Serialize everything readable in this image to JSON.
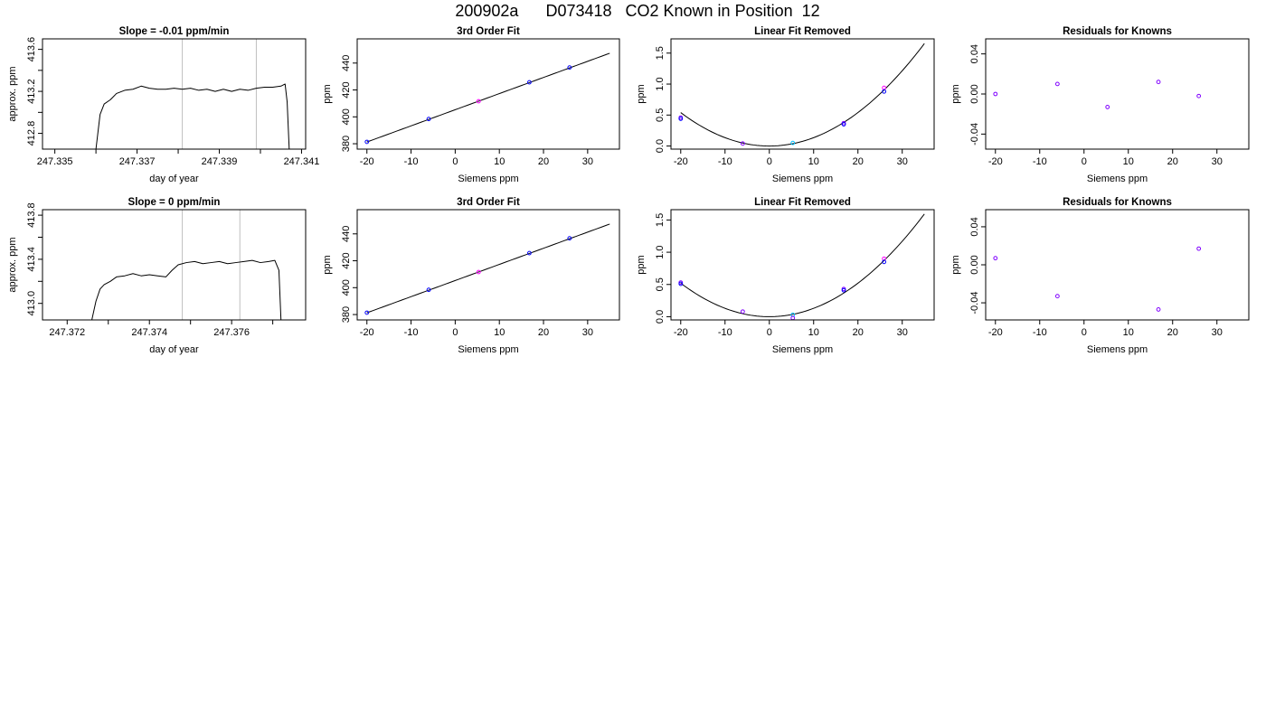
{
  "page": {
    "title": "200902a      D073418   CO2 Known in Position  12"
  },
  "colors": {
    "axis": "#000000",
    "trace": "#000000",
    "vline": "#bfbfbf",
    "point_blue": "#0000ff",
    "point_magenta": "#ff00ff",
    "point_purple": "#8000ff",
    "point_cyan": "#00bfff"
  },
  "chart_data": [
    {
      "id": "r1-slope",
      "type": "line",
      "title": "Slope =  -0.01  ppm/min",
      "xlabel": "day of year",
      "ylabel": "approx. ppm",
      "xlim": [
        247.3347,
        247.3411
      ],
      "ylim": [
        412.65,
        413.7
      ],
      "xticks": [
        247.335,
        247.336,
        247.337,
        247.338,
        247.339,
        247.34,
        247.341
      ],
      "xtick_labels": [
        "247.335",
        "",
        "247.337",
        "",
        "247.339",
        "",
        "247.341"
      ],
      "yticks": [
        412.8,
        413.0,
        413.2,
        413.4,
        413.6
      ],
      "ytick_labels": [
        "412.8",
        "",
        "413.2",
        "",
        "413.6"
      ],
      "vlines": [
        247.3381,
        247.3399
      ],
      "series": [
        {
          "x": [
            247.336,
            247.3361,
            247.3362,
            247.33635,
            247.3365,
            247.3367,
            247.3369,
            247.3371,
            247.3373,
            247.3375,
            247.3377,
            247.3379,
            247.3381,
            247.3383,
            247.3385,
            247.3387,
            247.3389,
            247.3391,
            247.3393,
            247.3395,
            247.3397,
            247.3399,
            247.3401,
            247.3403,
            247.3405,
            247.3406,
            247.34065,
            247.3407
          ],
          "y": [
            412.65,
            412.98,
            413.08,
            413.12,
            413.18,
            413.21,
            413.22,
            413.25,
            413.23,
            413.22,
            413.22,
            413.23,
            413.22,
            413.23,
            413.21,
            413.22,
            413.2,
            413.22,
            413.2,
            413.22,
            413.21,
            413.23,
            413.24,
            413.24,
            413.25,
            413.27,
            413.1,
            412.65
          ]
        }
      ]
    },
    {
      "id": "r1-fit",
      "type": "scatter",
      "title": "3rd Order Fit",
      "xlabel": "Siemens ppm",
      "ylabel": "ppm",
      "xlim": [
        -22.2,
        37.2
      ],
      "ylim": [
        376,
        458
      ],
      "xticks": [
        -20,
        -10,
        0,
        10,
        20,
        30
      ],
      "xtick_labels": [
        "-20",
        "-10",
        "0",
        "10",
        "20",
        "30"
      ],
      "yticks": [
        380,
        400,
        420,
        440
      ],
      "ytick_labels": [
        "380",
        "400",
        "420",
        "440"
      ],
      "curve": {
        "from": -20,
        "to": 35,
        "coeffs": [
          405.3,
          1.2
        ]
      },
      "points": [
        {
          "x": -20,
          "y": 381.4,
          "color": "point_blue"
        },
        {
          "x": -6,
          "y": 398.4,
          "color": "point_blue"
        },
        {
          "x": 5.3,
          "y": 411.6,
          "color": "point_magenta"
        },
        {
          "x": 16.8,
          "y": 425.7,
          "color": "point_blue"
        },
        {
          "x": 25.9,
          "y": 436.7,
          "color": "point_blue"
        }
      ]
    },
    {
      "id": "r1-linear",
      "type": "scatter",
      "title": "Linear Fit Removed",
      "xlabel": "Siemens ppm",
      "ylabel": "ppm",
      "xlim": [
        -22.2,
        37.2
      ],
      "ylim": [
        -0.05,
        1.73
      ],
      "xticks": [
        -20,
        -10,
        0,
        10,
        20,
        30
      ],
      "xtick_labels": [
        "-20",
        "-10",
        "0",
        "10",
        "20",
        "30"
      ],
      "yticks": [
        0,
        0.5,
        1.0,
        1.5
      ],
      "ytick_labels": [
        "0.0",
        "0.5",
        "1.0",
        "1.5"
      ],
      "curve": {
        "from": -20,
        "to": 35,
        "coeffs": [
          0,
          0,
          0.00135
        ]
      },
      "points": [
        {
          "x": -20,
          "y": 0.46,
          "color": "point_purple"
        },
        {
          "x": -20,
          "y": 0.44,
          "color": "point_blue"
        },
        {
          "x": -6,
          "y": 0.04,
          "color": "point_purple"
        },
        {
          "x": 5.3,
          "y": 0.05,
          "color": "point_cyan"
        },
        {
          "x": 16.8,
          "y": 0.37,
          "color": "point_purple"
        },
        {
          "x": 16.8,
          "y": 0.35,
          "color": "point_blue"
        },
        {
          "x": 25.9,
          "y": 0.94,
          "color": "point_magenta"
        },
        {
          "x": 25.9,
          "y": 0.88,
          "color": "point_blue"
        }
      ]
    },
    {
      "id": "r1-resid",
      "type": "scatter",
      "title": "Residuals for Knowns",
      "xlabel": "Siemens ppm",
      "ylabel": "ppm",
      "xlim": [
        -22.2,
        37.2
      ],
      "ylim": [
        -0.055,
        0.055
      ],
      "xticks": [
        -20,
        -10,
        0,
        10,
        20,
        30
      ],
      "xtick_labels": [
        "-20",
        "-10",
        "0",
        "10",
        "20",
        "30"
      ],
      "yticks": [
        -0.04,
        0,
        0.04
      ],
      "ytick_labels": [
        "-0.04",
        "0.00",
        "0.04"
      ],
      "points": [
        {
          "x": -20,
          "y": 0.0,
          "color": "point_purple"
        },
        {
          "x": -6,
          "y": 0.01,
          "color": "point_purple"
        },
        {
          "x": 5.3,
          "y": -0.013,
          "color": "point_purple"
        },
        {
          "x": 16.8,
          "y": 0.012,
          "color": "point_purple"
        },
        {
          "x": 25.9,
          "y": -0.002,
          "color": "point_purple"
        }
      ]
    },
    {
      "id": "r2-slope",
      "type": "line",
      "title": "Slope =  0  ppm/min",
      "xlabel": "day of year",
      "ylabel": "approx. ppm",
      "xlim": [
        247.3714,
        247.3778
      ],
      "ylim": [
        412.85,
        413.85
      ],
      "xticks": [
        247.372,
        247.373,
        247.374,
        247.375,
        247.376,
        247.377
      ],
      "xtick_labels": [
        "247.372",
        "",
        "247.374",
        "",
        "247.376",
        ""
      ],
      "yticks": [
        413.0,
        413.2,
        413.4,
        413.6,
        413.8
      ],
      "ytick_labels": [
        "413.0",
        "",
        "413.4",
        "",
        "413.8"
      ],
      "vlines": [
        247.3748,
        247.3762
      ],
      "series": [
        {
          "x": [
            247.3726,
            247.3727,
            247.3728,
            247.3729,
            247.37305,
            247.3732,
            247.3734,
            247.3736,
            247.3738,
            247.374,
            247.3742,
            247.3744,
            247.37455,
            247.3747,
            247.3749,
            247.3751,
            247.3753,
            247.3755,
            247.3757,
            247.3759,
            247.3761,
            247.3763,
            247.3765,
            247.3767,
            247.3769,
            247.37705,
            247.37715,
            247.3772
          ],
          "y": [
            412.85,
            413.02,
            413.13,
            413.17,
            413.2,
            413.24,
            413.25,
            413.27,
            413.25,
            413.26,
            413.25,
            413.24,
            413.3,
            413.35,
            413.37,
            413.38,
            413.36,
            413.37,
            413.38,
            413.36,
            413.37,
            413.38,
            413.39,
            413.37,
            413.38,
            413.39,
            413.3,
            412.85
          ]
        }
      ]
    },
    {
      "id": "r2-fit",
      "type": "scatter",
      "title": "3rd Order Fit",
      "xlabel": "Siemens ppm",
      "ylabel": "ppm",
      "xlim": [
        -22.2,
        37.2
      ],
      "ylim": [
        376,
        458
      ],
      "xticks": [
        -20,
        -10,
        0,
        10,
        20,
        30
      ],
      "xtick_labels": [
        "-20",
        "-10",
        "0",
        "10",
        "20",
        "30"
      ],
      "yticks": [
        380,
        400,
        420,
        440
      ],
      "ytick_labels": [
        "380",
        "400",
        "420",
        "440"
      ],
      "curve": {
        "from": -20,
        "to": 35,
        "coeffs": [
          405.3,
          1.2
        ]
      },
      "points": [
        {
          "x": -20,
          "y": 381.4,
          "color": "point_blue"
        },
        {
          "x": -6,
          "y": 398.4,
          "color": "point_blue"
        },
        {
          "x": 5.3,
          "y": 411.6,
          "color": "point_magenta"
        },
        {
          "x": 16.8,
          "y": 425.7,
          "color": "point_blue"
        },
        {
          "x": 25.9,
          "y": 436.7,
          "color": "point_blue"
        }
      ]
    },
    {
      "id": "r2-linear",
      "type": "scatter",
      "title": "Linear Fit Removed",
      "xlabel": "Siemens ppm",
      "ylabel": "ppm",
      "xlim": [
        -22.2,
        37.2
      ],
      "ylim": [
        -0.05,
        1.66
      ],
      "xticks": [
        -20,
        -10,
        0,
        10,
        20,
        30
      ],
      "xtick_labels": [
        "-20",
        "-10",
        "0",
        "10",
        "20",
        "30"
      ],
      "yticks": [
        0,
        0.5,
        1.0,
        1.5
      ],
      "ytick_labels": [
        "0.0",
        "0.5",
        "1.0",
        "1.5"
      ],
      "curve": {
        "from": -20,
        "to": 35,
        "coeffs": [
          0,
          0,
          0.0013
        ]
      },
      "points": [
        {
          "x": -20,
          "y": 0.53,
          "color": "point_purple"
        },
        {
          "x": -20,
          "y": 0.51,
          "color": "point_blue"
        },
        {
          "x": -6,
          "y": 0.08,
          "color": "point_purple"
        },
        {
          "x": 5.3,
          "y": 0.03,
          "color": "point_cyan"
        },
        {
          "x": 5.3,
          "y": -0.02,
          "color": "point_purple"
        },
        {
          "x": 16.8,
          "y": 0.43,
          "color": "point_purple"
        },
        {
          "x": 16.8,
          "y": 0.41,
          "color": "point_blue"
        },
        {
          "x": 25.9,
          "y": 0.9,
          "color": "point_magenta"
        },
        {
          "x": 25.9,
          "y": 0.85,
          "color": "point_blue"
        }
      ]
    },
    {
      "id": "r2-resid",
      "type": "scatter",
      "title": "Residuals for Knowns",
      "xlabel": "Siemens ppm",
      "ylabel": "ppm",
      "xlim": [
        -22.2,
        37.2
      ],
      "ylim": [
        -0.058,
        0.058
      ],
      "xticks": [
        -20,
        -10,
        0,
        10,
        20,
        30
      ],
      "xtick_labels": [
        "-20",
        "-10",
        "0",
        "10",
        "20",
        "30"
      ],
      "yticks": [
        -0.04,
        0,
        0.04
      ],
      "ytick_labels": [
        "-0.04",
        "0.00",
        "0.04"
      ],
      "points": [
        {
          "x": -20,
          "y": 0.007,
          "color": "point_purple"
        },
        {
          "x": -6,
          "y": -0.033,
          "color": "point_purple"
        },
        {
          "x": 16.8,
          "y": -0.047,
          "color": "point_purple"
        },
        {
          "x": 25.9,
          "y": 0.017,
          "color": "point_purple"
        }
      ]
    }
  ]
}
